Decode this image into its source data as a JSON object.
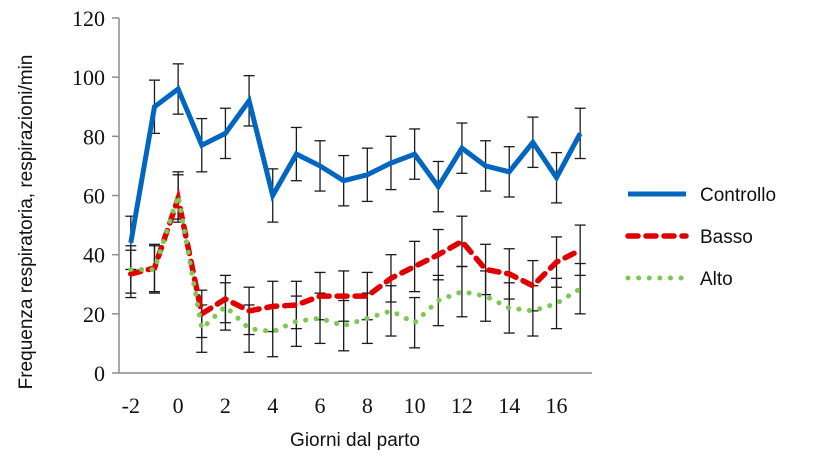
{
  "chart_data": {
    "type": "line",
    "title": "",
    "xlabel": "Giorni dal parto",
    "ylabel": "Frequenza respiratoria, respirazioni/min",
    "x": [
      -2,
      -1,
      0,
      1,
      2,
      3,
      4,
      5,
      6,
      7,
      8,
      9,
      10,
      11,
      12,
      13,
      14,
      15,
      16,
      17
    ],
    "x_ticks": [
      "-2",
      "0",
      "2",
      "4",
      "6",
      "8",
      "10",
      "12",
      "14",
      "16"
    ],
    "x_tick_values": [
      -2,
      0,
      2,
      4,
      6,
      8,
      10,
      12,
      14,
      16
    ],
    "y_ticks": [
      "0",
      "20",
      "40",
      "60",
      "80",
      "100",
      "120"
    ],
    "ylim": [
      0,
      120
    ],
    "xlim": [
      -2.5,
      17.5
    ],
    "grid": false,
    "legend_position": "right",
    "series": [
      {
        "name": "Controllo",
        "color": "#0066c0",
        "style": "solid",
        "values": [
          44,
          90,
          96,
          77,
          81,
          92,
          60,
          74,
          70,
          65,
          67,
          71,
          74,
          63,
          76,
          70,
          68,
          78,
          66,
          81
        ],
        "error": [
          9,
          9,
          8.5,
          9,
          8.5,
          8.5,
          9,
          9,
          8.5,
          8.5,
          9,
          9,
          8.5,
          8.5,
          8.5,
          8.5,
          8.5,
          8.5,
          8.5,
          8.5
        ]
      },
      {
        "name": "Basso",
        "color": "#e00000",
        "style": "dashed",
        "values": [
          33.5,
          35.5,
          59,
          20,
          25,
          21,
          22.5,
          23,
          26,
          26,
          26,
          32,
          36,
          40,
          44.5,
          35,
          33.5,
          29.5,
          37.5,
          41.5
        ],
        "error": [
          8,
          8,
          8,
          8,
          8,
          8,
          8.5,
          8,
          8,
          8.5,
          8,
          8,
          8.5,
          8.5,
          8.5,
          8.5,
          8.5,
          8.5,
          8.5,
          8.5
        ]
      },
      {
        "name": "Alto",
        "color": "#7cc850",
        "style": "dotted",
        "values": [
          35,
          35,
          60,
          15,
          22.5,
          15,
          14,
          17.5,
          18.5,
          16,
          18.5,
          21,
          17,
          24.5,
          27.5,
          26,
          22,
          21,
          23.5,
          28.5
        ],
        "error": [
          8,
          8,
          8,
          8,
          8,
          8,
          8.5,
          8.5,
          8.5,
          8.5,
          8.5,
          8.5,
          8.5,
          8.5,
          8.5,
          8.5,
          8.5,
          8.5,
          8.5,
          8.5
        ]
      }
    ]
  },
  "legend": {
    "items": [
      {
        "label": "Controllo",
        "color": "#0066c0",
        "style": "solid"
      },
      {
        "label": "Basso",
        "color": "#e00000",
        "style": "dashed"
      },
      {
        "label": "Alto",
        "color": "#7cc850",
        "style": "dotted"
      }
    ]
  }
}
